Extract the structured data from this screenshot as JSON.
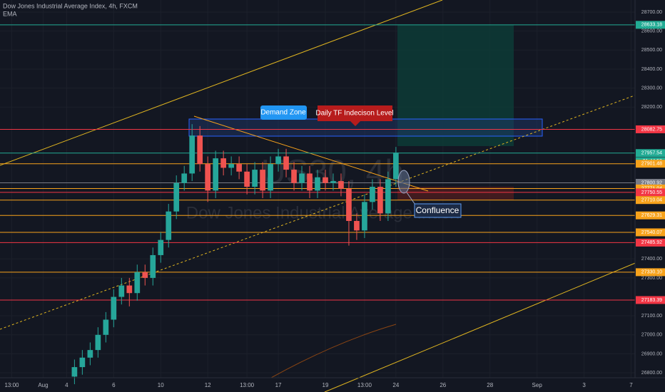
{
  "chart_data": {
    "type": "candlestick",
    "title": "Dow Jones Industrial Average Index, 4h, FXCM",
    "indicator": "EMA",
    "watermark": "US30, 4h",
    "watermark_subtitle": "Dow Jones Industrial Average Index",
    "annotations": [
      "Demand Zone",
      "Daily TF Indecison Level",
      "Confluence"
    ],
    "countdown": "01:44:50",
    "up_color": "#26a69a",
    "down_color": "#ef5350",
    "categories": [
      null,
      "13:00",
      null,
      null,
      null,
      "Aug",
      null,
      null,
      "4",
      null,
      null,
      null,
      null,
      null,
      "6",
      null,
      null,
      null,
      null,
      null,
      "10",
      null,
      null,
      null,
      null,
      null,
      "12",
      null,
      null,
      null,
      null,
      "13:00",
      null,
      null,
      null,
      "17",
      null,
      null,
      null,
      null,
      null,
      "19",
      null,
      null,
      null,
      null,
      "13:00",
      null,
      null,
      null,
      "24",
      null,
      null,
      null,
      null,
      null,
      "26",
      null,
      null,
      null,
      null,
      null,
      "28",
      null,
      null,
      null,
      null,
      null,
      "Sep",
      null,
      null,
      null,
      null,
      null,
      "3",
      null,
      null,
      null,
      null,
      null,
      "7"
    ],
    "open": [
      null,
      null,
      null,
      null,
      null,
      null,
      null,
      null,
      null,
      26780,
      26830,
      26880,
      26920,
      27000,
      27080,
      27200,
      27260,
      27220,
      27330,
      27300,
      27420,
      27500,
      27650,
      27800,
      27850,
      28050,
      27900,
      27760,
      27930,
      27880,
      27900,
      27860,
      27780,
      27870,
      27760,
      27900,
      27940,
      27870,
      27800,
      27850,
      27760,
      27830,
      27800,
      27810,
      27770,
      27600,
      27550,
      27700,
      27780,
      27640,
      27820,
      null,
      null,
      null,
      null,
      null,
      null,
      null,
      null,
      null,
      null,
      null,
      null,
      null,
      null,
      null,
      null,
      null,
      null,
      null,
      null,
      null,
      null,
      null,
      null,
      null,
      null,
      null,
      null,
      null,
      null
    ],
    "high": [
      null,
      null,
      null,
      null,
      null,
      null,
      null,
      null,
      null,
      26870,
      26920,
      26960,
      27040,
      27120,
      27240,
      27300,
      27300,
      27370,
      27370,
      27460,
      27540,
      27690,
      27840,
      27890,
      28110,
      28100,
      27940,
      27970,
      27970,
      27940,
      27940,
      27900,
      27910,
      27910,
      27940,
      27980,
      27980,
      27910,
      27890,
      27890,
      27870,
      27870,
      27850,
      27850,
      27810,
      27640,
      27740,
      27820,
      27820,
      27860,
      27990,
      null,
      null,
      null,
      null,
      null,
      null,
      null,
      null,
      null,
      null,
      null,
      null,
      null,
      null,
      null,
      null,
      null,
      null,
      null,
      null,
      null,
      null,
      null,
      null,
      null,
      null,
      null,
      null,
      null,
      null
    ],
    "low": [
      null,
      null,
      null,
      null,
      null,
      null,
      null,
      null,
      null,
      26740,
      26790,
      26840,
      26880,
      26960,
      27040,
      27160,
      27150,
      27180,
      27260,
      27260,
      27380,
      27460,
      27610,
      27760,
      27810,
      27860,
      27700,
      27720,
      27840,
      27840,
      27820,
      27740,
      27740,
      27720,
      27720,
      27860,
      27830,
      27760,
      27760,
      27720,
      27720,
      27760,
      27760,
      27730,
      27470,
      27500,
      27510,
      27660,
      27600,
      27600,
      27780,
      null,
      null,
      null,
      null,
      null,
      null,
      null,
      null,
      null,
      null,
      null,
      null,
      null,
      null,
      null,
      null,
      null,
      null,
      null,
      null,
      null,
      null,
      null,
      null,
      null,
      null,
      null,
      null,
      null,
      null
    ],
    "close": [
      null,
      null,
      null,
      null,
      null,
      null,
      null,
      null,
      null,
      26830,
      26880,
      26920,
      27000,
      27080,
      27200,
      27260,
      27220,
      27330,
      27300,
      27420,
      27500,
      27650,
      27800,
      27850,
      28050,
      27900,
      27760,
      27930,
      27880,
      27900,
      27860,
      27780,
      27870,
      27760,
      27900,
      27940,
      27870,
      27800,
      27850,
      27760,
      27830,
      27800,
      27810,
      27770,
      27600,
      27550,
      27700,
      27780,
      27640,
      27820,
      27960,
      null,
      null,
      null,
      null,
      null,
      null,
      null,
      null,
      null,
      null,
      null,
      null,
      null,
      null,
      null,
      null,
      null,
      null,
      null,
      null,
      null,
      null,
      null,
      null,
      null,
      null,
      null,
      null,
      null,
      null
    ],
    "ylim": [
      26774,
      28764
    ],
    "yticks": [
      {
        "value": 28700,
        "label": "28700.00"
      },
      {
        "value": 28600,
        "label": "28600.00"
      },
      {
        "value": 28500,
        "label": "28500.00"
      },
      {
        "value": 28400,
        "label": "28400.00"
      },
      {
        "value": 28300,
        "label": "28300.00"
      },
      {
        "value": 28200,
        "label": "28200.00"
      },
      {
        "value": 27400,
        "label": "27400.00"
      },
      {
        "value": 27300,
        "label": "27300.00"
      },
      {
        "value": 27100,
        "label": "27100.00"
      },
      {
        "value": 27000,
        "label": "27000.00"
      },
      {
        "value": 26900,
        "label": "26900.00"
      },
      {
        "value": 26800,
        "label": "26800.00"
      }
    ],
    "levels": [
      {
        "value": 28633.18,
        "label": "28633.18",
        "color": "#22ab94"
      },
      {
        "value": 28082.75,
        "label": "28082.75",
        "color": "#f23645"
      },
      {
        "value": 27957.54,
        "label": "27957.54",
        "color": "#22ab94"
      },
      {
        "value": 27901.48,
        "label": "27901.48",
        "color": "#f7a21b"
      },
      {
        "value": 27800.92,
        "label": "27800.92",
        "color": "#787b86"
      },
      {
        "value": 27771.04,
        "label": "27771.04",
        "color": "#f7a21b"
      },
      {
        "value": 27750.55,
        "label": "27750.55",
        "color": "#f23645"
      },
      {
        "value": 27710.04,
        "label": "27710.04",
        "color": "#f7a21b"
      },
      {
        "value": 27629.31,
        "label": "27629.31",
        "color": "#f7a21b"
      },
      {
        "value": 27540.07,
        "label": "27540.07",
        "color": "#f7a21b"
      },
      {
        "value": 27485.92,
        "label": "27485.92",
        "color": "#f23645"
      },
      {
        "value": 27330.1,
        "label": "27330.10",
        "color": "#f7a21b"
      },
      {
        "value": 27183.39,
        "label": "27183.39",
        "color": "#f23645"
      }
    ],
    "grid": true
  }
}
